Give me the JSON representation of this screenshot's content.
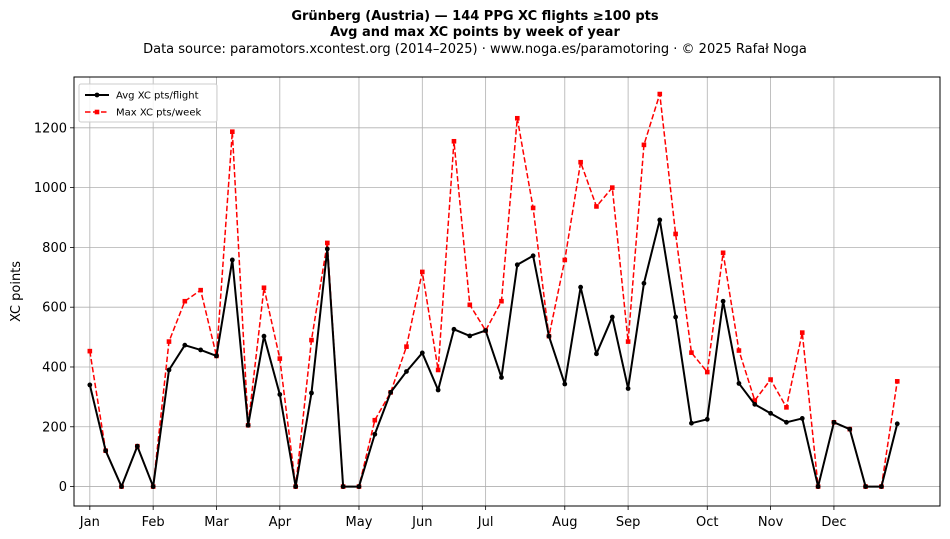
{
  "chart_data": {
    "type": "line",
    "title": "Grünberg (Austria)  —  144 PPG XC flights ≥100 pts",
    "subtitle": "Avg and max XC points by week of year",
    "source": "Data source: paramotors.xcontest.org (2014–2025)  ·  www.noga.es/paramotoring  ·  © 2025 Rafał Noga",
    "xlabel": "",
    "ylabel": "XC points",
    "xlim": [
      0,
      54.7
    ],
    "ylim": [
      -65,
      1370
    ],
    "yticks": [
      0,
      200,
      400,
      600,
      800,
      1000,
      1200
    ],
    "xticks": [
      {
        "label": "Jan",
        "week": 1
      },
      {
        "label": "Feb",
        "week": 5
      },
      {
        "label": "Mar",
        "week": 9
      },
      {
        "label": "Apr",
        "week": 13
      },
      {
        "label": "May",
        "week": 18
      },
      {
        "label": "Jun",
        "week": 22
      },
      {
        "label": "Jul",
        "week": 26
      },
      {
        "label": "Aug",
        "week": 31
      },
      {
        "label": "Sep",
        "week": 35
      },
      {
        "label": "Oct",
        "week": 40
      },
      {
        "label": "Nov",
        "week": 44
      },
      {
        "label": "Dec",
        "week": 48
      }
    ],
    "grid": true,
    "legend_position": "top-left",
    "x": [
      1,
      2,
      3,
      4,
      5,
      6,
      7,
      8,
      9,
      10,
      11,
      12,
      13,
      14,
      15,
      16,
      17,
      18,
      19,
      20,
      21,
      22,
      23,
      24,
      25,
      26,
      27,
      28,
      29,
      30,
      31,
      32,
      33,
      34,
      35,
      36,
      37,
      38,
      39,
      40,
      41,
      42,
      43,
      44,
      45,
      46,
      47,
      48,
      49,
      50,
      51,
      52
    ],
    "series": [
      {
        "name": "Avg XC pts/flight",
        "color": "#000000",
        "style": "solid",
        "marker": "circle",
        "values": [
          340,
          120,
          0,
          135,
          0,
          390,
          473,
          457,
          437,
          758,
          205,
          503,
          308,
          0,
          313,
          795,
          0,
          0,
          175,
          315,
          385,
          447,
          323,
          526,
          504,
          522,
          365,
          742,
          772,
          503,
          343,
          667,
          444,
          567,
          328,
          680,
          892,
          567,
          212,
          225,
          620,
          345,
          275,
          245,
          215,
          228,
          0,
          215,
          192,
          0,
          0,
          210
        ]
      },
      {
        "name": "Max XC pts/week",
        "color": "#ff0000",
        "style": "dashed",
        "marker": "square",
        "values": [
          453,
          120,
          0,
          135,
          0,
          485,
          620,
          657,
          437,
          1187,
          205,
          665,
          428,
          0,
          490,
          815,
          0,
          0,
          222,
          315,
          468,
          718,
          390,
          1155,
          608,
          522,
          620,
          1232,
          932,
          503,
          758,
          1085,
          937,
          1000,
          485,
          1143,
          1313,
          845,
          448,
          383,
          782,
          455,
          288,
          358,
          265,
          515,
          0,
          215,
          192,
          0,
          0,
          352
        ]
      }
    ]
  }
}
